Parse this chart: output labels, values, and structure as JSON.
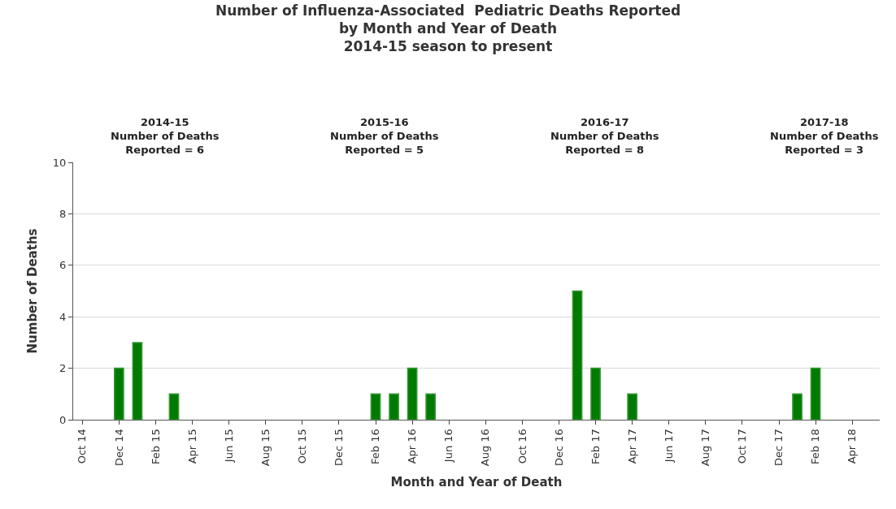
{
  "chart_data": {
    "type": "bar",
    "title": "Number of Influenza-Associated  Pediatric Deaths Reported\nby Month and Year of Death\n2014-15 season to present",
    "xlabel": "Month and Year of Death",
    "ylabel": "Number of Deaths",
    "categories": [
      "Oct 14",
      null,
      "Dec 14",
      null,
      "Feb 15",
      null,
      "Apr 15",
      null,
      "Jun 15",
      null,
      "Aug 15",
      null,
      "Oct 15",
      null,
      "Dec 15",
      null,
      "Feb 16",
      null,
      "Apr 16",
      null,
      "Jun 16",
      null,
      "Aug 16",
      null,
      "Oct 16",
      null,
      "Dec 16",
      null,
      "Feb 17",
      null,
      "Apr 17",
      null,
      "Jun 17",
      null,
      "Aug 17",
      null,
      "Oct 17",
      null,
      "Dec 17",
      null,
      "Feb 18",
      null,
      "Apr 18",
      null
    ],
    "values": [
      0,
      0,
      2,
      3,
      0,
      1,
      0,
      0,
      0,
      0,
      0,
      0,
      0,
      0,
      0,
      0,
      1,
      1,
      2,
      1,
      0,
      0,
      0,
      0,
      0,
      0,
      0,
      5,
      2,
      0,
      1,
      0,
      0,
      0,
      0,
      0,
      0,
      0,
      0,
      1,
      2,
      0,
      0,
      0
    ],
    "color": "#007a00",
    "ylim": [
      0,
      10
    ],
    "yticks": [
      0,
      2,
      4,
      6,
      8,
      10
    ],
    "grid": "y",
    "legend": false,
    "annotations": [
      "2014-15\nNumber of Deaths\nReported = 6",
      "2015-16\nNumber of Deaths\nReported = 5",
      "2016-17\nNumber of Deaths\nReported = 8",
      "2017-18\nNumber of Deaths\nReported = 3"
    ]
  }
}
